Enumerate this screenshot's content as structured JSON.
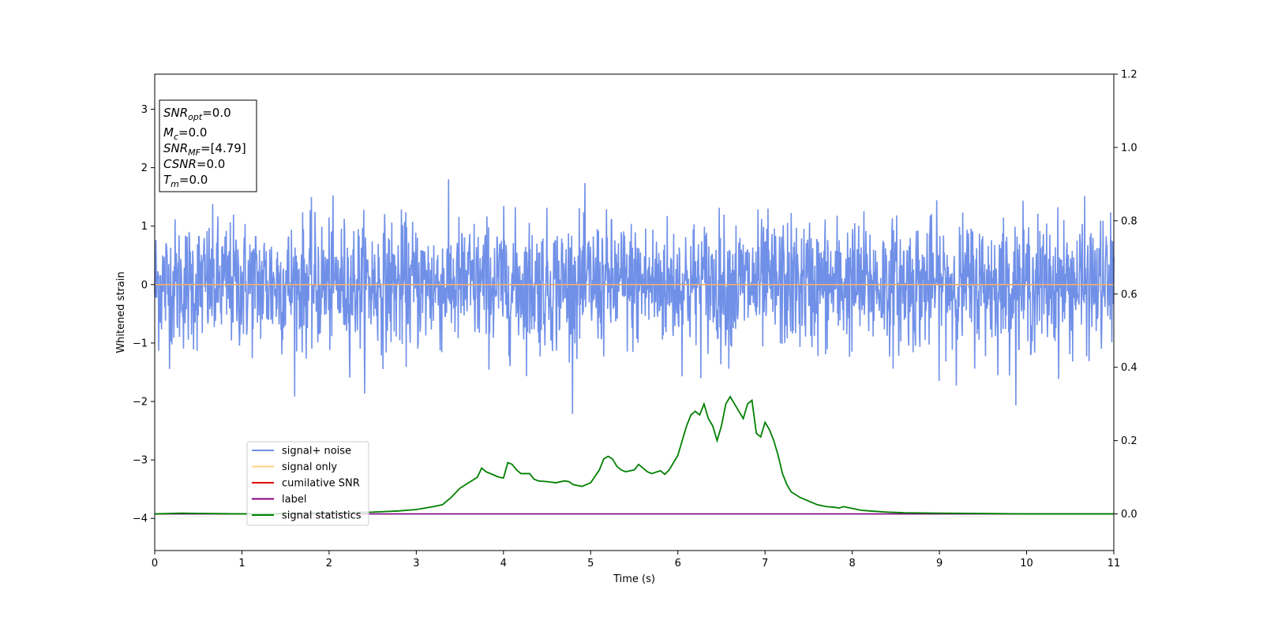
{
  "chart_data": {
    "type": "line",
    "xlabel": "Time (s)",
    "ylabel": "Whitened strain",
    "xlim": [
      0,
      11
    ],
    "ylim": [
      -4.55,
      3.6
    ],
    "y2lim": [
      -0.1,
      1.2
    ],
    "grid": false,
    "x_ticks": [
      "0",
      "1",
      "2",
      "3",
      "4",
      "5",
      "6",
      "7",
      "8",
      "9",
      "10",
      "11"
    ],
    "y_ticks": [
      {
        "v": 3,
        "label": "3"
      },
      {
        "v": 2,
        "label": "2"
      },
      {
        "v": 1,
        "label": "1"
      },
      {
        "v": 0,
        "label": "0"
      },
      {
        "v": -1,
        "label": "−1"
      },
      {
        "v": -2,
        "label": "−2"
      },
      {
        "v": -3,
        "label": "−3"
      },
      {
        "v": -4,
        "label": "−4"
      }
    ],
    "y2_ticks": [
      {
        "v": 1.2,
        "label": "1.2"
      },
      {
        "v": 1.0,
        "label": "1.0"
      },
      {
        "v": 0.8,
        "label": "0.8"
      },
      {
        "v": 0.6,
        "label": "0.6"
      },
      {
        "v": 0.4,
        "label": "0.4"
      },
      {
        "v": 0.2,
        "label": "0.2"
      },
      {
        "v": 0.0,
        "label": "0.0"
      }
    ],
    "legend": {
      "placement": "lower-left",
      "entries": [
        {
          "name": "signal+ noise",
          "color": "#7090e8"
        },
        {
          "name": "signal only",
          "color": "#ffd080"
        },
        {
          "name": "cumilative SNR",
          "color": "#e00000"
        },
        {
          "name": "label",
          "color": "#800080"
        },
        {
          "name": "signal statistics",
          "color": "#008000"
        }
      ]
    },
    "info_box": {
      "lines": [
        {
          "base": "SNR",
          "sub": "opt",
          "value": "=0.0"
        },
        {
          "base": "M",
          "sub": "c",
          "value": "=0.0"
        },
        {
          "base": "SNR",
          "sub": "MF",
          "value": "=[4.79]"
        },
        {
          "base": "CSNR",
          "sub": "",
          "value": "=0.0"
        },
        {
          "base": "T",
          "sub": "m",
          "value": "=0.0"
        }
      ]
    },
    "series": [
      {
        "name": "signal+ noise",
        "axis": "left",
        "color": "#7090e8",
        "noise_sigma": 0.55,
        "samples": 2400,
        "peak_range": [
          -2.6,
          2.4
        ]
      },
      {
        "name": "signal only",
        "axis": "left",
        "color": "#f0b070",
        "x": [
          0,
          11
        ],
        "y": [
          0,
          0
        ]
      },
      {
        "name": "label",
        "axis": "right",
        "color": "#800080",
        "x": [
          0,
          11
        ],
        "y": [
          0,
          0
        ]
      },
      {
        "name": "signal statistics",
        "axis": "right",
        "color": "#008000",
        "x": [
          0,
          0.3,
          0.6,
          1.0,
          1.5,
          2.0,
          2.5,
          2.8,
          3.0,
          3.1,
          3.2,
          3.3,
          3.4,
          3.5,
          3.6,
          3.7,
          3.75,
          3.8,
          3.9,
          3.95,
          4.0,
          4.05,
          4.1,
          4.15,
          4.2,
          4.3,
          4.35,
          4.4,
          4.5,
          4.6,
          4.7,
          4.75,
          4.8,
          4.9,
          5.0,
          5.1,
          5.15,
          5.2,
          5.25,
          5.3,
          5.35,
          5.4,
          5.5,
          5.55,
          5.6,
          5.65,
          5.7,
          5.8,
          5.85,
          5.9,
          6.0,
          6.05,
          6.1,
          6.15,
          6.2,
          6.25,
          6.3,
          6.35,
          6.4,
          6.45,
          6.5,
          6.55,
          6.6,
          6.65,
          6.7,
          6.75,
          6.8,
          6.85,
          6.9,
          6.95,
          7.0,
          7.05,
          7.1,
          7.15,
          7.2,
          7.25,
          7.3,
          7.4,
          7.5,
          7.6,
          7.7,
          7.8,
          7.85,
          7.9,
          8.0,
          8.1,
          8.2,
          8.4,
          8.6,
          9.0,
          9.5,
          10.0,
          11.0
        ],
        "y": [
          0,
          0.002,
          0.001,
          0,
          0.001,
          0.003,
          0.005,
          0.008,
          0.012,
          0.016,
          0.02,
          0.025,
          0.045,
          0.07,
          0.085,
          0.1,
          0.125,
          0.115,
          0.105,
          0.1,
          0.098,
          0.14,
          0.135,
          0.12,
          0.11,
          0.11,
          0.095,
          0.09,
          0.088,
          0.085,
          0.09,
          0.088,
          0.08,
          0.075,
          0.085,
          0.12,
          0.15,
          0.157,
          0.15,
          0.13,
          0.12,
          0.115,
          0.12,
          0.135,
          0.125,
          0.115,
          0.11,
          0.118,
          0.108,
          0.12,
          0.16,
          0.2,
          0.24,
          0.27,
          0.28,
          0.27,
          0.3,
          0.26,
          0.24,
          0.2,
          0.24,
          0.3,
          0.32,
          0.3,
          0.28,
          0.26,
          0.3,
          0.31,
          0.22,
          0.21,
          0.25,
          0.23,
          0.2,
          0.16,
          0.11,
          0.08,
          0.06,
          0.045,
          0.035,
          0.025,
          0.02,
          0.018,
          0.016,
          0.02,
          0.015,
          0.01,
          0.008,
          0.005,
          0.003,
          0.002,
          0.001,
          0,
          0
        ]
      }
    ]
  }
}
